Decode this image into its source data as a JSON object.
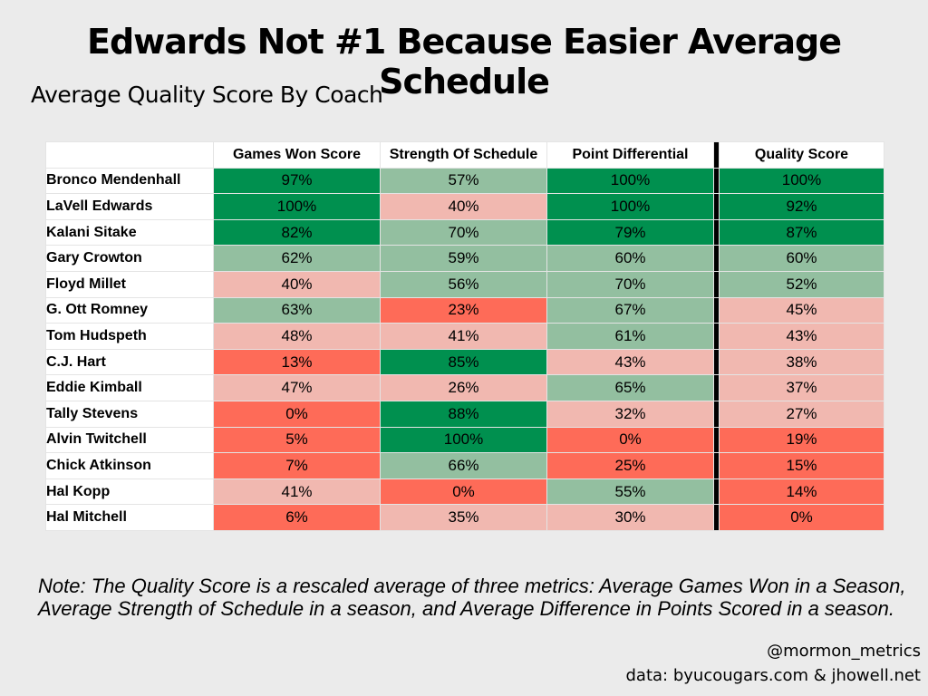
{
  "title": "Edwards Not #1 Because Easier Average Schedule",
  "subtitle": "Average Quality Score By Coach",
  "note": "Note: The Quality Score is a rescaled average of three metrics: Average Games Won in a Season, Average Strength of Schedule in a season, and Average Difference in Points Scored in a season.",
  "handle": "@mormon_metrics",
  "source": "data: byucougars.com & jhowell.net",
  "colors": {
    "dark_green": "#00904f",
    "light_green": "#93bfa0",
    "pink": "#f1b8b0",
    "red": "#fe6b58"
  },
  "chart_data": {
    "type": "table",
    "title": "Edwards Not #1 Because Easier Average Schedule",
    "subtitle": "Average Quality Score By Coach",
    "columns": [
      "Games Won Score",
      "Strength Of Schedule",
      "Point Differential",
      "Quality Score"
    ],
    "rows": [
      {
        "coach": "Bronco Mendenhall",
        "values": [
          "97%",
          "57%",
          "100%",
          "100%"
        ],
        "colors": [
          "dark_green",
          "light_green",
          "dark_green",
          "dark_green"
        ]
      },
      {
        "coach": "LaVell Edwards",
        "values": [
          "100%",
          "40%",
          "100%",
          "92%"
        ],
        "colors": [
          "dark_green",
          "pink",
          "dark_green",
          "dark_green"
        ]
      },
      {
        "coach": "Kalani Sitake",
        "values": [
          "82%",
          "70%",
          "79%",
          "87%"
        ],
        "colors": [
          "dark_green",
          "light_green",
          "dark_green",
          "dark_green"
        ]
      },
      {
        "coach": "Gary Crowton",
        "values": [
          "62%",
          "59%",
          "60%",
          "60%"
        ],
        "colors": [
          "light_green",
          "light_green",
          "light_green",
          "light_green"
        ]
      },
      {
        "coach": "Floyd Millet",
        "values": [
          "40%",
          "56%",
          "70%",
          "52%"
        ],
        "colors": [
          "pink",
          "light_green",
          "light_green",
          "light_green"
        ]
      },
      {
        "coach": "G. Ott Romney",
        "values": [
          "63%",
          "23%",
          "67%",
          "45%"
        ],
        "colors": [
          "light_green",
          "red",
          "light_green",
          "pink"
        ]
      },
      {
        "coach": "Tom Hudspeth",
        "values": [
          "48%",
          "41%",
          "61%",
          "43%"
        ],
        "colors": [
          "pink",
          "pink",
          "light_green",
          "pink"
        ]
      },
      {
        "coach": "C.J. Hart",
        "values": [
          "13%",
          "85%",
          "43%",
          "38%"
        ],
        "colors": [
          "red",
          "dark_green",
          "pink",
          "pink"
        ]
      },
      {
        "coach": "Eddie Kimball",
        "values": [
          "47%",
          "26%",
          "65%",
          "37%"
        ],
        "colors": [
          "pink",
          "pink",
          "light_green",
          "pink"
        ]
      },
      {
        "coach": "Tally Stevens",
        "values": [
          "0%",
          "88%",
          "32%",
          "27%"
        ],
        "colors": [
          "red",
          "dark_green",
          "pink",
          "pink"
        ]
      },
      {
        "coach": "Alvin Twitchell",
        "values": [
          "5%",
          "100%",
          "0%",
          "19%"
        ],
        "colors": [
          "red",
          "dark_green",
          "red",
          "red"
        ]
      },
      {
        "coach": "Chick Atkinson",
        "values": [
          "7%",
          "66%",
          "25%",
          "15%"
        ],
        "colors": [
          "red",
          "light_green",
          "red",
          "red"
        ]
      },
      {
        "coach": "Hal Kopp",
        "values": [
          "41%",
          "0%",
          "55%",
          "14%"
        ],
        "colors": [
          "pink",
          "red",
          "light_green",
          "red"
        ]
      },
      {
        "coach": "Hal Mitchell",
        "values": [
          "6%",
          "35%",
          "30%",
          "0%"
        ],
        "colors": [
          "red",
          "pink",
          "pink",
          "red"
        ]
      }
    ]
  }
}
